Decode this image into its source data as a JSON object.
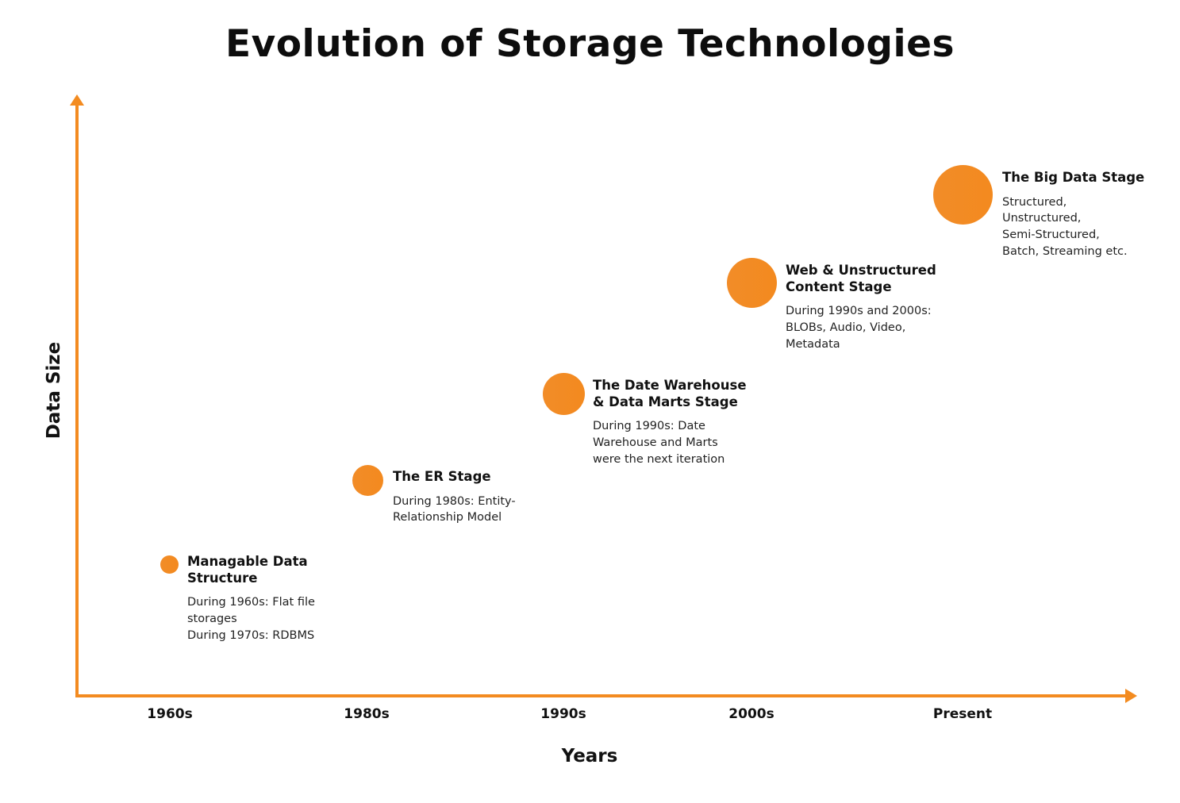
{
  "title": "Evolution of Storage Technologies",
  "y_axis_label": "Data Size",
  "x_axis_label": "Years",
  "accent_color": "#f38b20",
  "ticks": [
    "1960s",
    "1980s",
    "1990s",
    "2000s",
    "Present"
  ],
  "stages": [
    {
      "title": "Managable Data\nStructure",
      "description": "During 1960s: Flat file\nstorages\nDuring 1970s: RDBMS"
    },
    {
      "title": "The ER Stage",
      "description": "During 1980s: Entity-\nRelationship Model"
    },
    {
      "title": "The Date Warehouse\n& Data Marts Stage",
      "description": "During 1990s: Date\nWarehouse and Marts\nwere the next iteration"
    },
    {
      "title": "Web & Unstructured\nContent Stage",
      "description": "During 1990s and 2000s:\nBLOBs, Audio, Video,\nMetadata"
    },
    {
      "title": "The Big Data Stage",
      "description": "Structured,\nUnstructured,\nSemi-Structured,\nBatch, Streaming etc."
    }
  ]
}
